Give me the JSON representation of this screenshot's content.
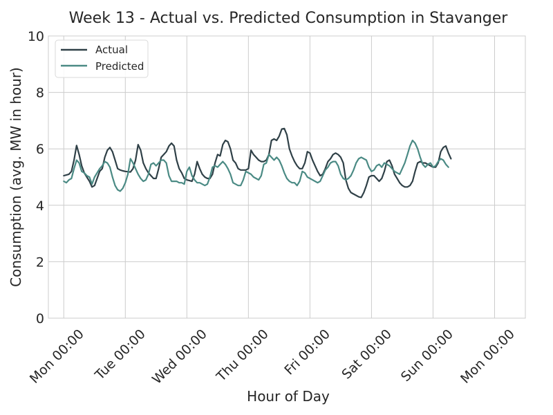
{
  "chart_data": {
    "type": "line",
    "title": "Week 13 - Actual vs. Predicted Consumption in Stavanger",
    "xlabel": "Hour of Day",
    "ylabel": "Consumption (avg. MW in hour)",
    "ylim": [
      0,
      10
    ],
    "yticks": [
      0,
      2,
      4,
      6,
      8,
      10
    ],
    "xlim": [
      -6,
      180
    ],
    "xticks": [
      {
        "hour": 0,
        "label": "Mon 00:00"
      },
      {
        "hour": 24,
        "label": "Tue 00:00"
      },
      {
        "hour": 48,
        "label": "Wed 00:00"
      },
      {
        "hour": 72,
        "label": "Thu 00:00"
      },
      {
        "hour": 96,
        "label": "Fri 00:00"
      },
      {
        "hour": 120,
        "label": "Sat 00:00"
      },
      {
        "hour": 144,
        "label": "Sun 00:00"
      },
      {
        "hour": 168,
        "label": "Mon 00:00"
      }
    ],
    "grid": true,
    "legend_position": "top-left",
    "series": [
      {
        "name": "Actual",
        "color": "#2f4047",
        "points": [
          [
            0,
            5.05
          ],
          [
            2,
            5.1
          ],
          [
            3,
            5.2
          ],
          [
            4,
            5.6
          ],
          [
            5,
            6.12
          ],
          [
            6,
            5.8
          ],
          [
            7,
            5.4
          ],
          [
            8,
            5.15
          ],
          [
            9,
            5.0
          ],
          [
            10,
            4.85
          ],
          [
            11,
            4.65
          ],
          [
            12,
            4.7
          ],
          [
            13,
            4.95
          ],
          [
            14,
            5.2
          ],
          [
            15,
            5.3
          ],
          [
            16,
            5.7
          ],
          [
            17,
            5.95
          ],
          [
            18,
            6.05
          ],
          [
            19,
            5.9
          ],
          [
            20,
            5.6
          ],
          [
            21,
            5.3
          ],
          [
            22,
            5.25
          ],
          [
            23,
            5.22
          ],
          [
            24,
            5.2
          ],
          [
            26,
            5.18
          ],
          [
            27,
            5.3
          ],
          [
            28,
            5.6
          ],
          [
            29,
            6.15
          ],
          [
            30,
            5.95
          ],
          [
            31,
            5.5
          ],
          [
            32,
            5.3
          ],
          [
            33,
            5.15
          ],
          [
            34,
            5.05
          ],
          [
            35,
            4.95
          ],
          [
            36,
            4.95
          ],
          [
            37,
            5.3
          ],
          [
            38,
            5.7
          ],
          [
            39,
            5.8
          ],
          [
            40,
            5.9
          ],
          [
            41,
            6.1
          ],
          [
            42,
            6.2
          ],
          [
            43,
            6.1
          ],
          [
            44,
            5.6
          ],
          [
            45,
            5.3
          ],
          [
            46,
            5.15
          ],
          [
            47,
            4.95
          ],
          [
            48,
            4.9
          ],
          [
            50,
            4.85
          ],
          [
            51,
            5.1
          ],
          [
            52,
            5.55
          ],
          [
            53,
            5.3
          ],
          [
            54,
            5.1
          ],
          [
            55,
            5.0
          ],
          [
            56,
            4.95
          ],
          [
            57,
            4.95
          ],
          [
            58,
            5.1
          ],
          [
            59,
            5.5
          ],
          [
            60,
            5.8
          ],
          [
            61,
            5.75
          ],
          [
            62,
            6.15
          ],
          [
            63,
            6.3
          ],
          [
            64,
            6.25
          ],
          [
            65,
            6.0
          ],
          [
            66,
            5.6
          ],
          [
            67,
            5.5
          ],
          [
            68,
            5.3
          ],
          [
            69,
            5.25
          ],
          [
            70,
            5.25
          ],
          [
            71,
            5.25
          ],
          [
            72,
            5.3
          ],
          [
            73,
            5.95
          ],
          [
            74,
            5.8
          ],
          [
            75,
            5.7
          ],
          [
            76,
            5.6
          ],
          [
            77,
            5.55
          ],
          [
            78,
            5.55
          ],
          [
            79,
            5.6
          ],
          [
            80,
            5.8
          ],
          [
            81,
            6.3
          ],
          [
            82,
            6.35
          ],
          [
            83,
            6.3
          ],
          [
            84,
            6.45
          ],
          [
            85,
            6.7
          ],
          [
            86,
            6.72
          ],
          [
            87,
            6.5
          ],
          [
            88,
            6.0
          ],
          [
            89,
            5.75
          ],
          [
            90,
            5.55
          ],
          [
            91,
            5.4
          ],
          [
            92,
            5.3
          ],
          [
            93,
            5.3
          ],
          [
            94,
            5.5
          ],
          [
            95,
            5.9
          ],
          [
            96,
            5.85
          ],
          [
            97,
            5.6
          ],
          [
            98,
            5.4
          ],
          [
            99,
            5.2
          ],
          [
            100,
            5.05
          ],
          [
            101,
            5.1
          ],
          [
            102,
            5.3
          ],
          [
            103,
            5.55
          ],
          [
            104,
            5.65
          ],
          [
            105,
            5.8
          ],
          [
            106,
            5.85
          ],
          [
            107,
            5.8
          ],
          [
            108,
            5.7
          ],
          [
            109,
            5.5
          ],
          [
            110,
            4.9
          ],
          [
            111,
            4.6
          ],
          [
            112,
            4.45
          ],
          [
            113,
            4.4
          ],
          [
            114,
            4.35
          ],
          [
            115,
            4.3
          ],
          [
            116,
            4.28
          ],
          [
            117,
            4.45
          ],
          [
            118,
            4.7
          ],
          [
            119,
            5.0
          ],
          [
            120,
            5.05
          ],
          [
            121,
            5.05
          ],
          [
            122,
            4.95
          ],
          [
            123,
            4.85
          ],
          [
            124,
            4.95
          ],
          [
            125,
            5.2
          ],
          [
            126,
            5.55
          ],
          [
            127,
            5.6
          ],
          [
            128,
            5.4
          ],
          [
            129,
            5.1
          ],
          [
            130,
            4.95
          ],
          [
            131,
            4.8
          ],
          [
            132,
            4.7
          ],
          [
            133,
            4.65
          ],
          [
            134,
            4.65
          ],
          [
            135,
            4.7
          ],
          [
            136,
            4.85
          ],
          [
            137,
            5.2
          ],
          [
            138,
            5.5
          ],
          [
            139,
            5.55
          ],
          [
            140,
            5.5
          ],
          [
            141,
            5.5
          ],
          [
            142,
            5.45
          ],
          [
            143,
            5.4
          ],
          [
            144,
            5.35
          ],
          [
            145,
            5.35
          ],
          [
            146,
            5.5
          ],
          [
            147,
            5.9
          ],
          [
            148,
            6.05
          ],
          [
            149,
            6.1
          ],
          [
            150,
            5.85
          ],
          [
            151,
            5.65
          ]
        ]
      },
      {
        "name": "Predicted",
        "color": "#4a8a84",
        "points": [
          [
            0,
            4.85
          ],
          [
            1,
            4.8
          ],
          [
            2,
            4.9
          ],
          [
            3,
            4.95
          ],
          [
            4,
            5.3
          ],
          [
            5,
            5.6
          ],
          [
            6,
            5.5
          ],
          [
            7,
            5.2
          ],
          [
            8,
            5.15
          ],
          [
            9,
            5.05
          ],
          [
            10,
            5.0
          ],
          [
            11,
            4.75
          ],
          [
            12,
            5.0
          ],
          [
            13,
            5.15
          ],
          [
            14,
            5.3
          ],
          [
            15,
            5.4
          ],
          [
            16,
            5.55
          ],
          [
            17,
            5.5
          ],
          [
            18,
            5.35
          ],
          [
            19,
            5.0
          ],
          [
            20,
            4.7
          ],
          [
            21,
            4.55
          ],
          [
            22,
            4.5
          ],
          [
            23,
            4.6
          ],
          [
            24,
            4.8
          ],
          [
            25,
            5.1
          ],
          [
            26,
            5.65
          ],
          [
            27,
            5.5
          ],
          [
            28,
            5.3
          ],
          [
            29,
            5.1
          ],
          [
            30,
            4.95
          ],
          [
            31,
            4.85
          ],
          [
            32,
            4.9
          ],
          [
            33,
            5.1
          ],
          [
            34,
            5.45
          ],
          [
            35,
            5.5
          ],
          [
            36,
            5.4
          ],
          [
            37,
            5.5
          ],
          [
            38,
            5.6
          ],
          [
            39,
            5.6
          ],
          [
            40,
            5.5
          ],
          [
            41,
            5.05
          ],
          [
            42,
            4.85
          ],
          [
            43,
            4.85
          ],
          [
            44,
            4.85
          ],
          [
            45,
            4.8
          ],
          [
            46,
            4.8
          ],
          [
            47,
            4.75
          ],
          [
            48,
            5.2
          ],
          [
            49,
            5.35
          ],
          [
            50,
            5.05
          ],
          [
            51,
            4.9
          ],
          [
            52,
            4.8
          ],
          [
            53,
            4.8
          ],
          [
            54,
            4.75
          ],
          [
            55,
            4.7
          ],
          [
            56,
            4.75
          ],
          [
            57,
            5.0
          ],
          [
            58,
            5.35
          ],
          [
            59,
            5.4
          ],
          [
            60,
            5.35
          ],
          [
            61,
            5.45
          ],
          [
            62,
            5.55
          ],
          [
            63,
            5.45
          ],
          [
            64,
            5.3
          ],
          [
            65,
            5.1
          ],
          [
            66,
            4.8
          ],
          [
            67,
            4.75
          ],
          [
            68,
            4.7
          ],
          [
            69,
            4.7
          ],
          [
            70,
            4.9
          ],
          [
            71,
            5.2
          ],
          [
            72,
            5.15
          ],
          [
            73,
            5.1
          ],
          [
            74,
            5.0
          ],
          [
            75,
            4.95
          ],
          [
            76,
            4.9
          ],
          [
            77,
            5.05
          ],
          [
            78,
            5.45
          ],
          [
            79,
            5.5
          ],
          [
            80,
            5.8
          ],
          [
            81,
            5.7
          ],
          [
            82,
            5.6
          ],
          [
            83,
            5.7
          ],
          [
            84,
            5.6
          ],
          [
            85,
            5.4
          ],
          [
            86,
            5.15
          ],
          [
            87,
            4.95
          ],
          [
            88,
            4.85
          ],
          [
            89,
            4.8
          ],
          [
            90,
            4.8
          ],
          [
            91,
            4.7
          ],
          [
            92,
            4.85
          ],
          [
            93,
            5.2
          ],
          [
            94,
            5.15
          ],
          [
            95,
            5.0
          ],
          [
            96,
            4.95
          ],
          [
            97,
            4.9
          ],
          [
            98,
            4.85
          ],
          [
            99,
            4.8
          ],
          [
            100,
            4.85
          ],
          [
            101,
            5.05
          ],
          [
            102,
            5.25
          ],
          [
            103,
            5.35
          ],
          [
            104,
            5.5
          ],
          [
            105,
            5.55
          ],
          [
            106,
            5.55
          ],
          [
            107,
            5.4
          ],
          [
            108,
            5.1
          ],
          [
            109,
            4.95
          ],
          [
            110,
            4.9
          ],
          [
            111,
            4.95
          ],
          [
            112,
            5.05
          ],
          [
            113,
            5.25
          ],
          [
            114,
            5.5
          ],
          [
            115,
            5.65
          ],
          [
            116,
            5.7
          ],
          [
            117,
            5.65
          ],
          [
            118,
            5.6
          ],
          [
            119,
            5.35
          ],
          [
            120,
            5.2
          ],
          [
            121,
            5.25
          ],
          [
            122,
            5.4
          ],
          [
            123,
            5.45
          ],
          [
            124,
            5.35
          ],
          [
            125,
            5.5
          ],
          [
            126,
            5.45
          ],
          [
            127,
            5.4
          ],
          [
            128,
            5.3
          ],
          [
            129,
            5.2
          ],
          [
            130,
            5.15
          ],
          [
            131,
            5.1
          ],
          [
            132,
            5.3
          ],
          [
            133,
            5.5
          ],
          [
            134,
            5.8
          ],
          [
            135,
            6.1
          ],
          [
            136,
            6.3
          ],
          [
            137,
            6.2
          ],
          [
            138,
            6.0
          ],
          [
            139,
            5.7
          ],
          [
            140,
            5.45
          ],
          [
            141,
            5.35
          ],
          [
            142,
            5.45
          ],
          [
            143,
            5.5
          ],
          [
            144,
            5.35
          ],
          [
            145,
            5.4
          ],
          [
            146,
            5.55
          ],
          [
            147,
            5.65
          ],
          [
            148,
            5.6
          ],
          [
            149,
            5.45
          ],
          [
            150,
            5.35
          ]
        ]
      }
    ]
  }
}
